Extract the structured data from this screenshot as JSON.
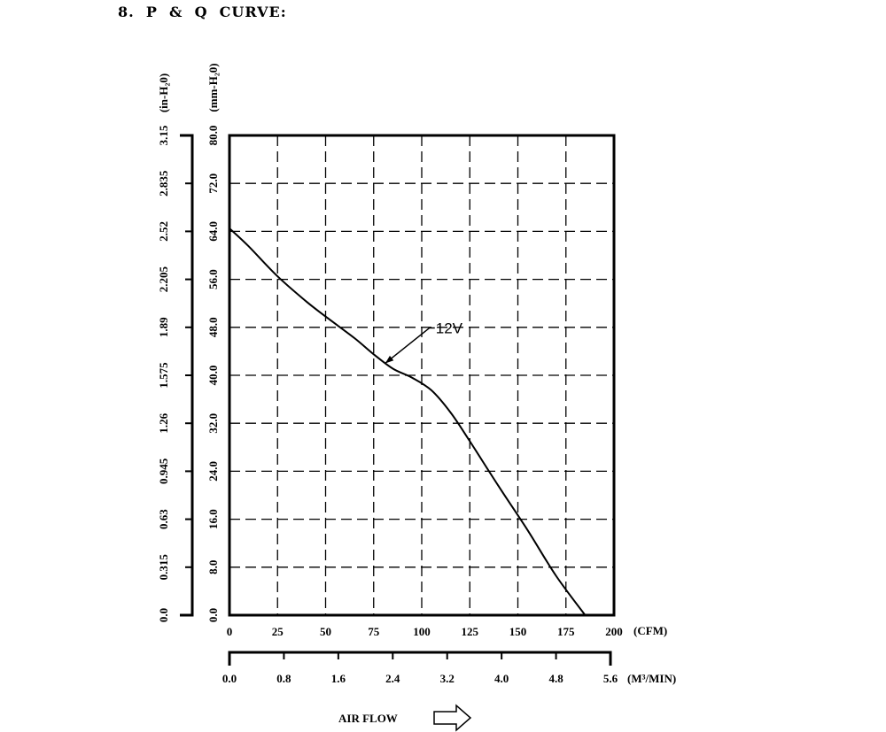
{
  "page": {
    "section_title": "8.  P  &  Q  CURVE:",
    "airflow_label": "AIR FLOW"
  },
  "chart_data": {
    "type": "line",
    "title": "",
    "x_axis": {
      "unit_label": "(CFM)",
      "range": [
        0,
        200
      ],
      "ticks": [
        0,
        25,
        50,
        75,
        100,
        125,
        150,
        175,
        200
      ],
      "tick_labels": [
        "0",
        "25",
        "50",
        "75",
        "100",
        "125",
        "150",
        "175",
        "200"
      ]
    },
    "x2_axis": {
      "unit_label": "(M³/MIN)",
      "range": [
        0,
        5.6
      ],
      "ticks": [
        0,
        0.8,
        1.6,
        2.4,
        3.2,
        4.0,
        4.8,
        5.6
      ],
      "tick_labels": [
        "0.0",
        "0.8",
        "1.6",
        "2.4",
        "3.2",
        "4.0",
        "4.8",
        "5.6"
      ]
    },
    "y_axis": {
      "unit_label": "(mm-H₂0)",
      "range": [
        0,
        80
      ],
      "ticks": [
        0,
        8,
        16,
        24,
        32,
        40,
        48,
        56,
        64,
        72,
        80
      ],
      "tick_labels": [
        "0.0",
        "8.0",
        "16.0",
        "24.0",
        "32.0",
        "40.0",
        "48.0",
        "56.0",
        "64.0",
        "72.0",
        "80.0"
      ]
    },
    "y2_axis": {
      "unit_label": "(in-H₂0)",
      "range": [
        0,
        3.15
      ],
      "ticks": [
        0,
        0.315,
        0.63,
        0.945,
        1.26,
        1.575,
        1.89,
        2.205,
        2.52,
        2.835,
        3.15
      ],
      "tick_labels": [
        "0.0",
        "0.315",
        "0.63",
        "0.945",
        "1.26",
        "1.575",
        "1.89",
        "2.205",
        "2.52",
        "2.835",
        "3.15"
      ]
    },
    "grid": true,
    "grid_style": "dashed",
    "series": [
      {
        "name": "12V",
        "x": [
          0,
          10,
          25,
          40,
          50,
          65,
          75,
          85,
          95,
          105,
          115,
          125,
          140,
          155,
          170,
          185
        ],
        "y": [
          64.5,
          61.5,
          56.5,
          52.3,
          49.8,
          46.2,
          43.5,
          41.1,
          39.6,
          37.5,
          33.8,
          29.0,
          21.5,
          14.2,
          6.5,
          0
        ]
      }
    ],
    "annotation": {
      "text": "12V",
      "target_x": 81,
      "target_y": 42.0
    }
  }
}
